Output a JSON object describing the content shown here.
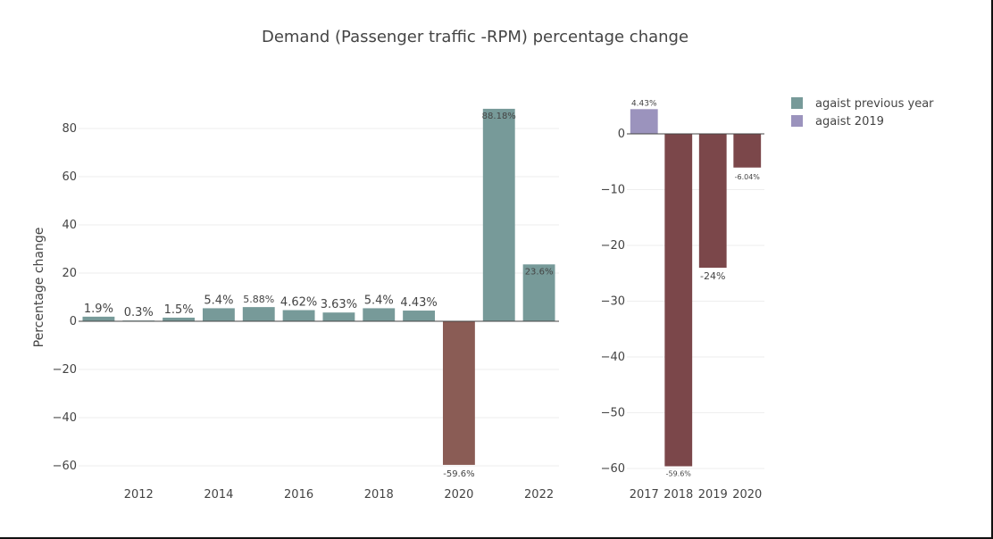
{
  "chart_data": [
    {
      "type": "bar",
      "title": "Demand (Passenger traffic -RPM) percentage change",
      "ylabel": "Percentage change",
      "x": [
        2011,
        2012,
        2013,
        2014,
        2015,
        2016,
        2017,
        2018,
        2019,
        2020,
        2021,
        2022
      ],
      "values": [
        1.9,
        0.3,
        1.5,
        5.4,
        5.88,
        4.62,
        3.63,
        5.4,
        4.43,
        -59.6,
        88.18,
        23.6
      ],
      "value_labels": [
        "1.9%",
        "0.3%",
        "1.5%",
        "5.4%",
        "5.88%",
        "4.62%",
        "3.63%",
        "5.4%",
        "4.43%",
        "-59.6%",
        "88.18%",
        "23.6%"
      ],
      "xticks": [
        2012,
        2014,
        2016,
        2018,
        2020,
        2022
      ],
      "yticks": [
        80,
        60,
        40,
        20,
        0,
        -20,
        -40,
        -60
      ],
      "ytick_labels": [
        "80",
        "60",
        "40",
        "20",
        "0",
        "−20",
        "−40",
        "−60"
      ],
      "ylim": [
        -62,
        93
      ],
      "colors": {
        "positive": "#779a99",
        "negative": "#8a5c55"
      },
      "grid": true
    },
    {
      "type": "bar",
      "categories": [
        "2017",
        "2018",
        "2019",
        "2020"
      ],
      "values": [
        4.43,
        -59.6,
        -24,
        -6.04
      ],
      "value_labels": [
        "4.43%",
        "-59.6%",
        "-24%",
        "-6.04%"
      ],
      "yticks": [
        0,
        -10,
        -20,
        -30,
        -40,
        -50,
        -60
      ],
      "ytick_labels": [
        "0",
        "−10",
        "−20",
        "−30",
        "−40",
        "−50",
        "−60"
      ],
      "ylim": [
        -62,
        6
      ],
      "colors": {
        "positive": "#9b93bd",
        "negative": "#7b474a"
      },
      "grid": true,
      "legend": {
        "placement": "top-right",
        "items": [
          {
            "label": "agaist previous year",
            "color": "#779a99"
          },
          {
            "label": "agaist 2019",
            "color": "#9b93bd"
          }
        ]
      }
    }
  ]
}
